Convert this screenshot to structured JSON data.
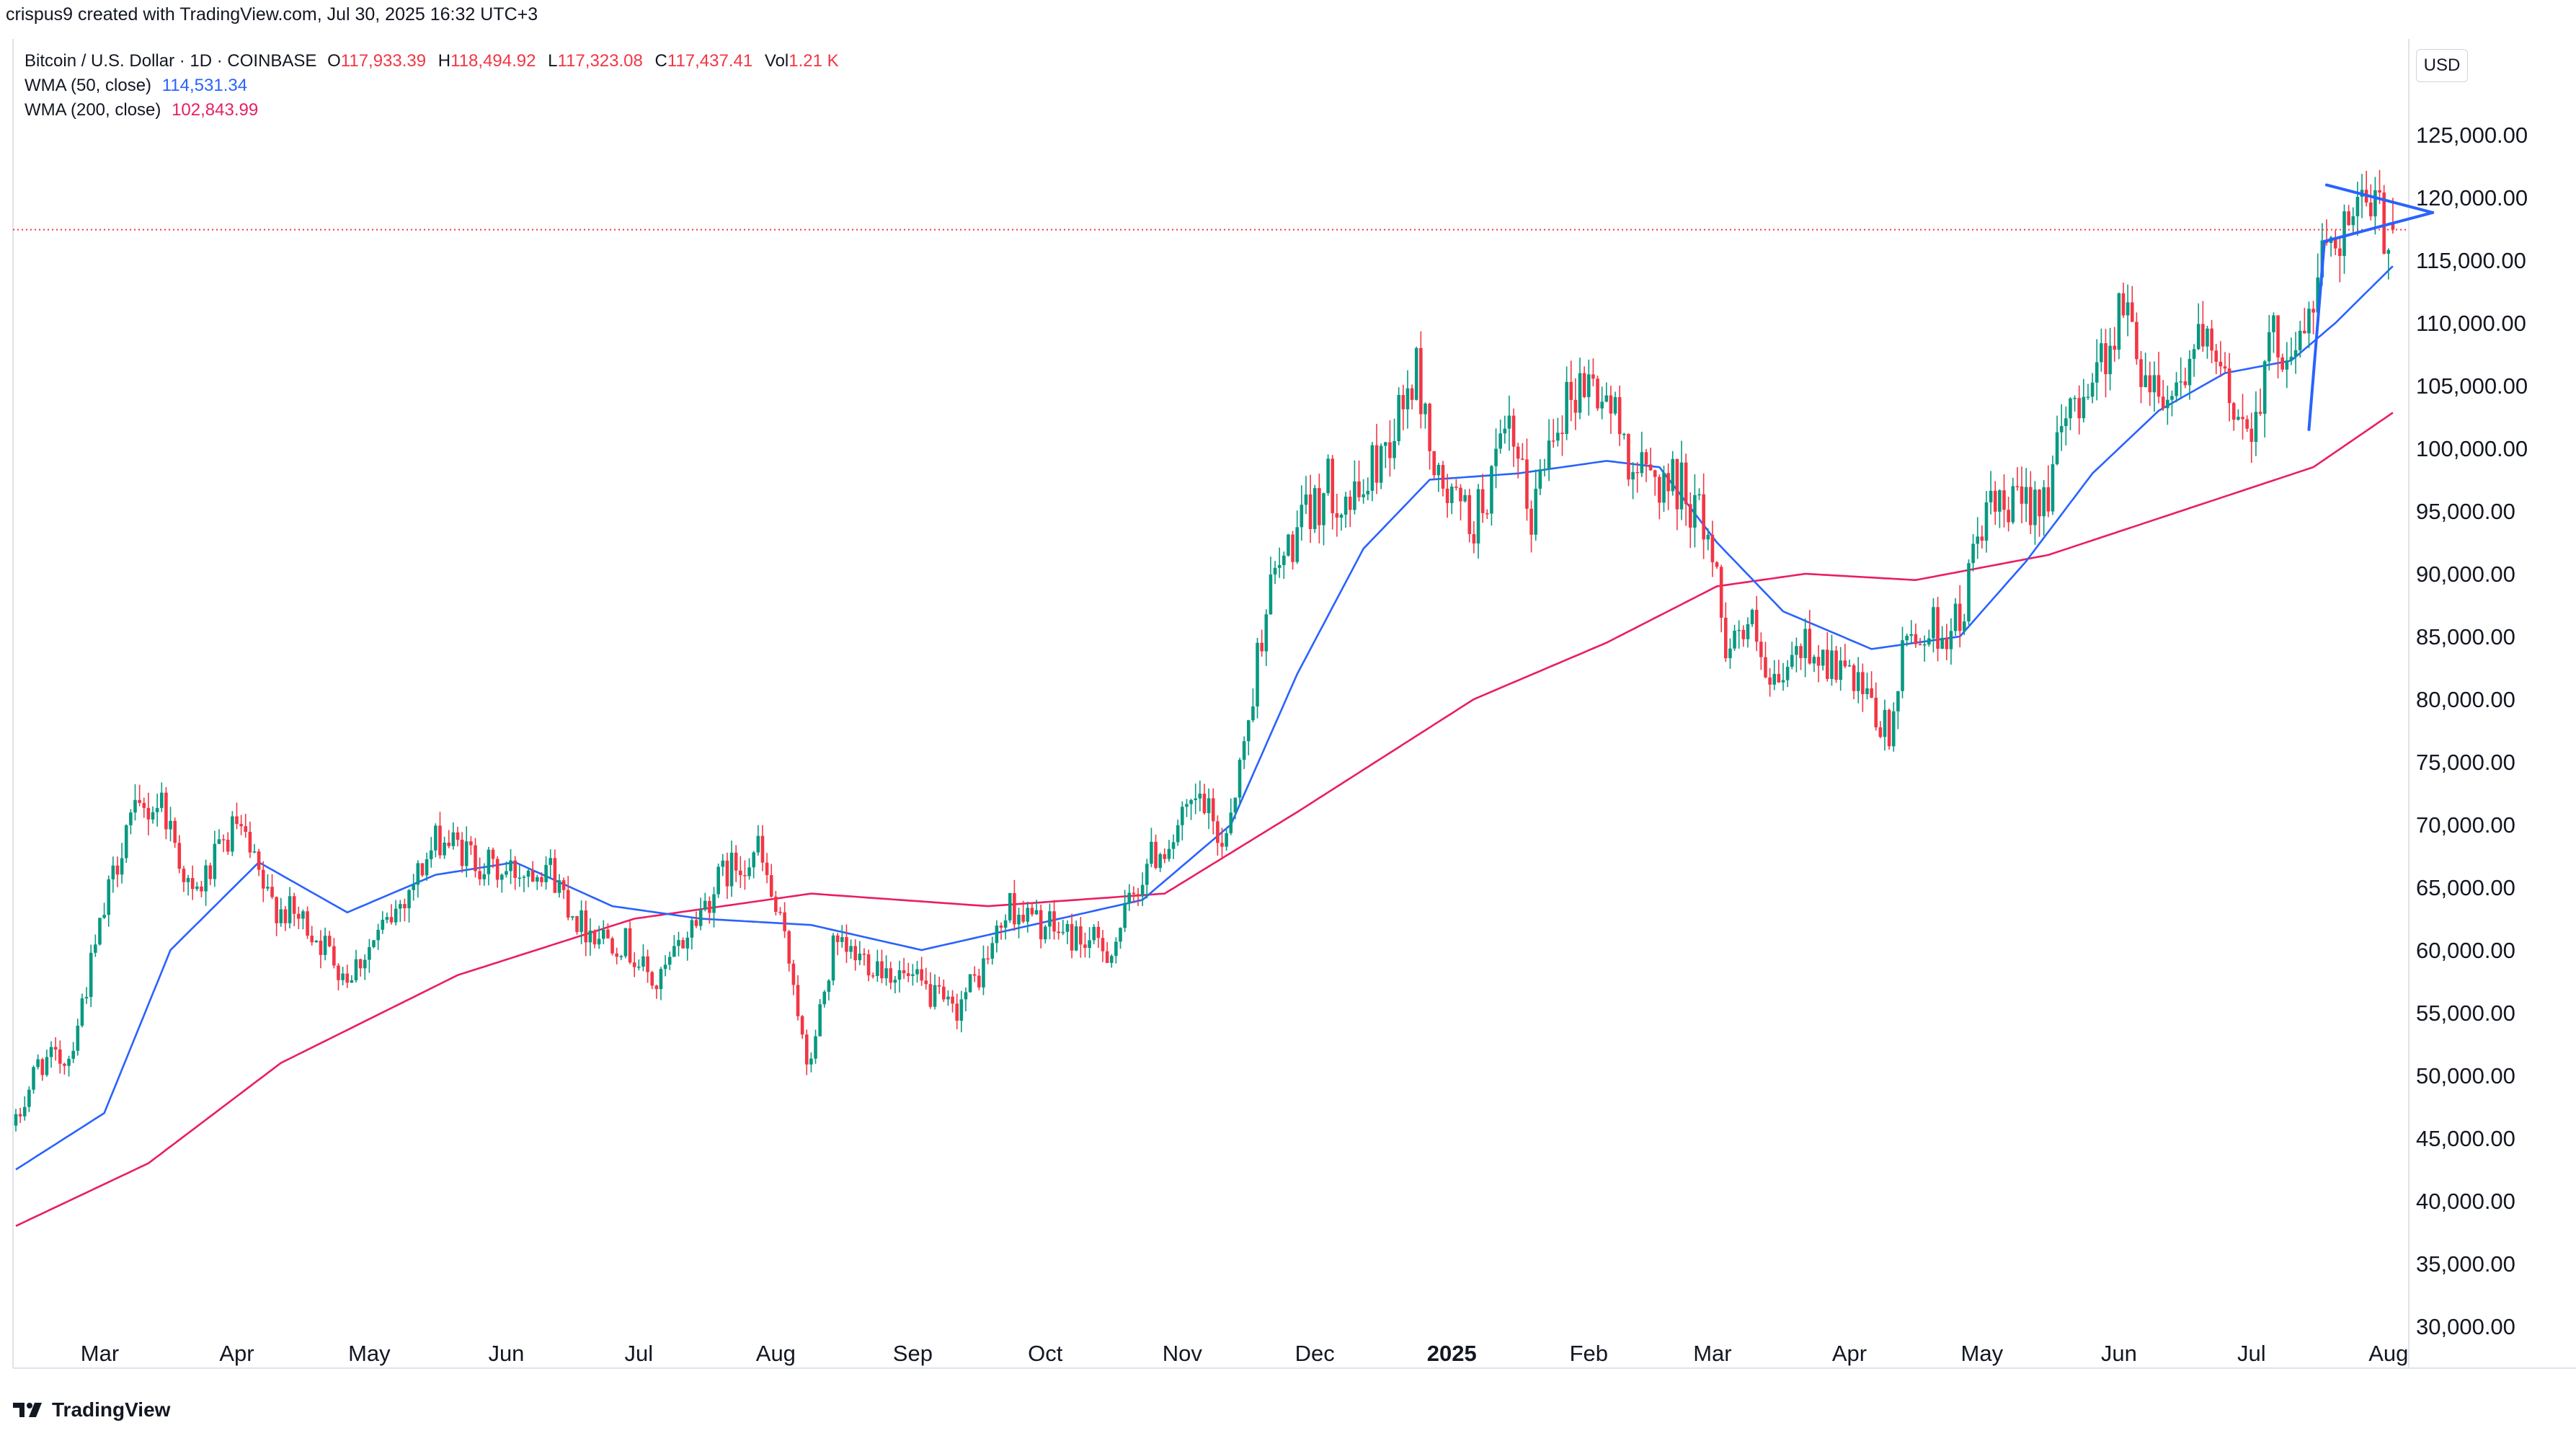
{
  "header": {
    "attribution": "crispus9 created with TradingView.com, Jul 30, 2025 16:32 UTC+3"
  },
  "legend": {
    "symbol": "Bitcoin / U.S. Dollar · 1D · COINBASE",
    "open_label": "O",
    "open": "117,933.39",
    "high_label": "H",
    "high": "118,494.92",
    "low_label": "L",
    "low": "117,323.08",
    "close_label": "C",
    "close": "117,437.41",
    "vol_label": "Vol",
    "vol": "1.21 K",
    "wma50_label": "WMA (50, close)",
    "wma50_value": "114,531.34",
    "wma200_label": "WMA (200, close)",
    "wma200_value": "102,843.99"
  },
  "currency": "USD",
  "footer": {
    "brand": "TradingView"
  },
  "colors": {
    "up": "#089981",
    "down": "#f23645",
    "wma50": "#2962ff",
    "wma200": "#e91e63",
    "trendline": "#2962ff",
    "price_line": "#f23645"
  },
  "chart_data": {
    "type": "candlestick",
    "title": "Bitcoin / U.S. Dollar · 1D · COINBASE",
    "ylim": [
      30000,
      130000
    ],
    "y_ticks": [
      30000,
      35000,
      40000,
      45000,
      50000,
      55000,
      60000,
      65000,
      70000,
      75000,
      80000,
      85000,
      90000,
      95000,
      100000,
      105000,
      110000,
      115000,
      120000,
      125000
    ],
    "y_tick_labels": [
      "30,000.00",
      "35,000.00",
      "40,000.00",
      "45,000.00",
      "50,000.00",
      "55,000.00",
      "60,000.00",
      "65,000.00",
      "70,000.00",
      "75,000.00",
      "80,000.00",
      "85,000.00",
      "90,000.00",
      "95,000.00",
      "100,000.00",
      "105,000.00",
      "110,000.00",
      "115,000.00",
      "120,000.00",
      "125,000.00"
    ],
    "x_label_bold": "2025",
    "months": [
      "Mar",
      "Apr",
      "May",
      "Jun",
      "Jul",
      "Aug",
      "Sep",
      "Oct",
      "Nov",
      "Dec",
      "2025",
      "Feb",
      "Mar",
      "Apr",
      "May",
      "Jun",
      "Jul",
      "Aug"
    ],
    "month_days": [
      19,
      50,
      80,
      111,
      141,
      172,
      203,
      233,
      264,
      294,
      325,
      356,
      384,
      415,
      445,
      476,
      506,
      537
    ],
    "start_date": "2024-02-11",
    "last_price": 117437.41,
    "price_anchors": [
      [
        0,
        46000
      ],
      [
        5,
        51000
      ],
      [
        12,
        51500
      ],
      [
        20,
        63000
      ],
      [
        25,
        70000
      ],
      [
        33,
        72000
      ],
      [
        40,
        64000
      ],
      [
        50,
        70000
      ],
      [
        57,
        64000
      ],
      [
        66,
        62000
      ],
      [
        75,
        58000
      ],
      [
        84,
        62000
      ],
      [
        96,
        69000
      ],
      [
        110,
        66000
      ],
      [
        120,
        67000
      ],
      [
        128,
        62000
      ],
      [
        138,
        60500
      ],
      [
        145,
        57000
      ],
      [
        153,
        62000
      ],
      [
        160,
        66000
      ],
      [
        168,
        68000
      ],
      [
        176,
        58000
      ],
      [
        179,
        50000
      ],
      [
        185,
        60000
      ],
      [
        195,
        59000
      ],
      [
        205,
        57000
      ],
      [
        212,
        55000
      ],
      [
        218,
        58000
      ],
      [
        225,
        63500
      ],
      [
        232,
        62000
      ],
      [
        240,
        61000
      ],
      [
        248,
        60000
      ],
      [
        256,
        67000
      ],
      [
        262,
        69000
      ],
      [
        268,
        72000
      ],
      [
        273,
        68500
      ],
      [
        278,
        76000
      ],
      [
        283,
        88000
      ],
      [
        288,
        92000
      ],
      [
        297,
        97000
      ],
      [
        303,
        95500
      ],
      [
        311,
        101000
      ],
      [
        317,
        106000
      ],
      [
        322,
        97000
      ],
      [
        330,
        94000
      ],
      [
        338,
        101000
      ],
      [
        343,
        94500
      ],
      [
        348,
        102500
      ],
      [
        355,
        105500
      ],
      [
        360,
        104000
      ],
      [
        367,
        98000
      ],
      [
        377,
        97000
      ],
      [
        383,
        93500
      ],
      [
        387,
        85000
      ],
      [
        393,
        85500
      ],
      [
        397,
        80000
      ],
      [
        405,
        84500
      ],
      [
        414,
        82000
      ],
      [
        420,
        79000
      ],
      [
        424,
        77000
      ],
      [
        428,
        85000
      ],
      [
        440,
        86000
      ],
      [
        445,
        94500
      ],
      [
        452,
        95000
      ],
      [
        460,
        97000
      ],
      [
        466,
        104000
      ],
      [
        472,
        107000
      ],
      [
        477,
        111500
      ],
      [
        482,
        106000
      ],
      [
        488,
        104500
      ],
      [
        494,
        108500
      ],
      [
        500,
        105000
      ],
      [
        505,
        101500
      ],
      [
        511,
        108500
      ],
      [
        517,
        108000
      ],
      [
        520,
        112000
      ],
      [
        523,
        117000
      ],
      [
        527,
        118000
      ],
      [
        532,
        119000
      ],
      [
        538,
        117437
      ]
    ],
    "wma50_anchors": [
      [
        0,
        42500
      ],
      [
        20,
        47000
      ],
      [
        35,
        60000
      ],
      [
        55,
        67000
      ],
      [
        75,
        63000
      ],
      [
        95,
        66000
      ],
      [
        113,
        67000
      ],
      [
        135,
        63500
      ],
      [
        155,
        62500
      ],
      [
        180,
        62000
      ],
      [
        205,
        60000
      ],
      [
        230,
        62000
      ],
      [
        255,
        64000
      ],
      [
        275,
        70000
      ],
      [
        290,
        82000
      ],
      [
        305,
        92000
      ],
      [
        320,
        97500
      ],
      [
        340,
        98000
      ],
      [
        360,
        99000
      ],
      [
        372,
        98500
      ],
      [
        385,
        92500
      ],
      [
        400,
        87000
      ],
      [
        420,
        84000
      ],
      [
        440,
        85000
      ],
      [
        455,
        91000
      ],
      [
        470,
        98000
      ],
      [
        485,
        103000
      ],
      [
        500,
        106000
      ],
      [
        515,
        107000
      ],
      [
        525,
        110000
      ],
      [
        538,
        114531
      ]
    ],
    "wma200_anchors": [
      [
        0,
        38000
      ],
      [
        30,
        43000
      ],
      [
        60,
        51000
      ],
      [
        100,
        58000
      ],
      [
        140,
        62500
      ],
      [
        180,
        64500
      ],
      [
        220,
        63500
      ],
      [
        260,
        64500
      ],
      [
        290,
        71000
      ],
      [
        330,
        80000
      ],
      [
        360,
        84500
      ],
      [
        385,
        89000
      ],
      [
        405,
        90000
      ],
      [
        430,
        89500
      ],
      [
        460,
        91500
      ],
      [
        490,
        95000
      ],
      [
        520,
        98500
      ],
      [
        538,
        102844
      ]
    ],
    "triangle_lines": [
      [
        [
          519.0,
          101500
        ],
        [
          522.5,
          116500
        ]
      ],
      [
        [
          522.5,
          116500
        ],
        [
          547.0,
          118800
        ]
      ],
      [
        [
          523.0,
          121000
        ],
        [
          547.0,
          118800
        ]
      ]
    ]
  }
}
